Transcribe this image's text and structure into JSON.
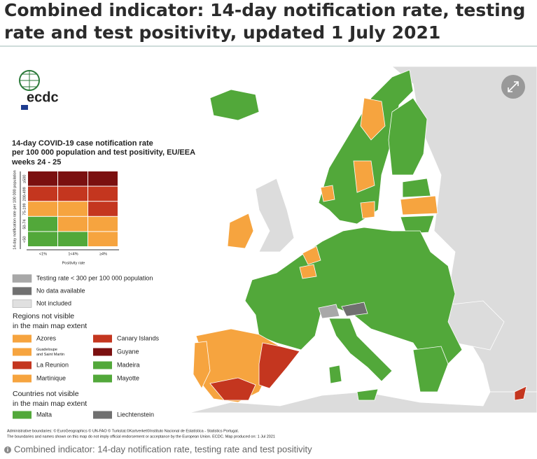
{
  "header": {
    "title_lines": [
      "Combined indicator: 14-day notification rate, testing",
      "rate and test positivity, updated 1 July 2021"
    ]
  },
  "map": {
    "logo": "ecdc",
    "legend_title_lines": [
      "14-day COVID-19 case notification rate",
      "per 100 000 population and test positivity, EU/EEA",
      "weeks 24 - 25"
    ],
    "matrix": {
      "y_axis_label": "14-day notification rate per 100 000 population",
      "row_labels": [
        "≥500",
        "200-499",
        "75-199",
        "50-74",
        "<50"
      ],
      "col_labels": [
        "<1%",
        "1<4%",
        "≥4%"
      ],
      "x_axis_label": "Positivity rate",
      "cells": [
        [
          "#7b1010",
          "#7b1010",
          "#7b1010"
        ],
        [
          "#c4361f",
          "#c4361f",
          "#c4361f"
        ],
        [
          "#f6a43f",
          "#f6a43f",
          "#c4361f"
        ],
        [
          "#52a83a",
          "#f6a43f",
          "#f6a43f"
        ],
        [
          "#52a83a",
          "#52a83a",
          "#f6a43f"
        ]
      ]
    },
    "legend_items": [
      {
        "label": "Testing rate < 300 per 100 000 population",
        "color": "#a8a8a8"
      },
      {
        "label": "No data available",
        "color": "#707070"
      },
      {
        "label": "Not included",
        "color": "#e0e0e0"
      }
    ],
    "regions_title_lines": [
      "Regions not visible",
      "in the main map extent"
    ],
    "regions": [
      {
        "label": [
          "Azores"
        ],
        "color": "#f6a43f"
      },
      {
        "label": [
          "Canary Islands"
        ],
        "color": "#c4361f"
      },
      {
        "label": [
          "Guadeloupe",
          "and Saint Martin"
        ],
        "color": "#f6a43f"
      },
      {
        "label": [
          "Guyane"
        ],
        "color": "#7b1010"
      },
      {
        "label": [
          "La Reunion"
        ],
        "color": "#c4361f"
      },
      {
        "label": [
          "Madeira"
        ],
        "color": "#52a83a"
      },
      {
        "label": [
          "Martinique"
        ],
        "color": "#f6a43f"
      },
      {
        "label": [
          "Mayotte"
        ],
        "color": "#52a83a"
      }
    ],
    "countries_title_lines": [
      "Countries not visible",
      "in the main map extent"
    ],
    "countries": [
      {
        "label": "Malta",
        "color": "#52a83a"
      },
      {
        "label": "Liechtenstein",
        "color": "#707070"
      }
    ],
    "footnote_lines": [
      "Administrative boundaries: © EuroGeographics © UN-FAO © Turkstat.©Kartverket©Instituto Nacional de Estatística - Statistics Portugal.",
      "The boundaries and names shown on this map do not imply official endorsement or acceptance by the European Union. ECDC. Map produced on: 1 Jul 2021"
    ]
  },
  "caption": "Combined indicator: 14-day notification rate, testing rate and test positivity"
}
